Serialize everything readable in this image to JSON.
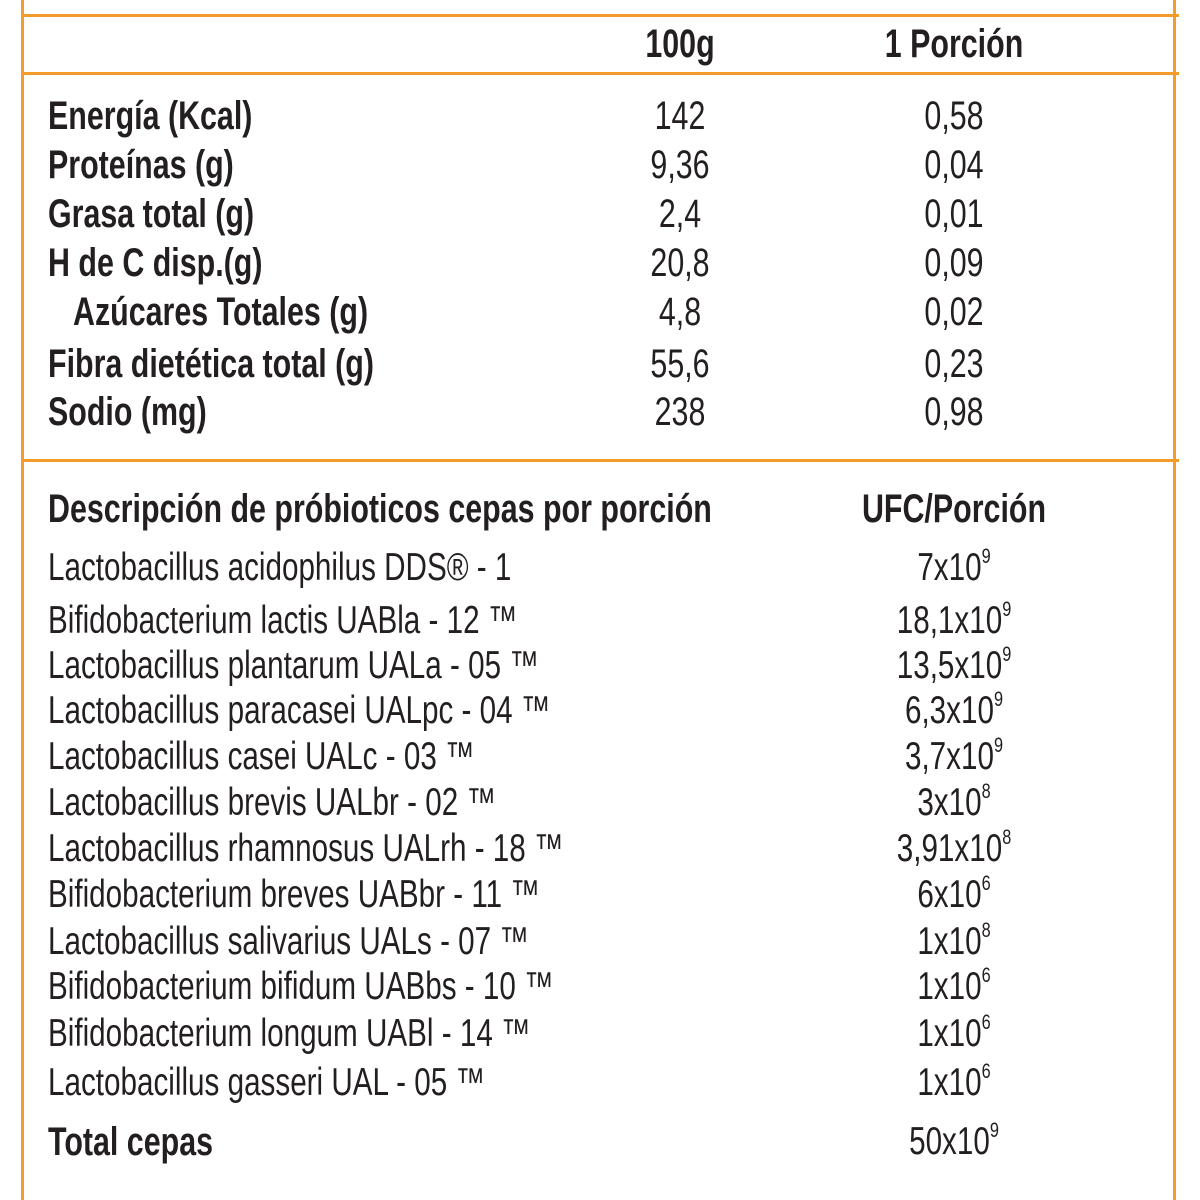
{
  "table": {
    "columns": {
      "per_100g": "100g",
      "per_portion": "1 Porción"
    },
    "rows": [
      {
        "label": "Energía (Kcal)",
        "per_100g": "142",
        "per_portion": "0,58",
        "indent": false
      },
      {
        "label": "Proteínas (g)",
        "per_100g": "9,36",
        "per_portion": "0,04",
        "indent": false
      },
      {
        "label": "Grasa total (g)",
        "per_100g": "2,4",
        "per_portion": "0,01",
        "indent": false
      },
      {
        "label": "H de C disp.(g)",
        "per_100g": "20,8",
        "per_portion": "0,09",
        "indent": false
      },
      {
        "label": "Azúcares Totales (g)",
        "per_100g": "4,8",
        "per_portion": "0,02",
        "indent": true
      },
      {
        "label": "Fibra dietética total (g)",
        "per_100g": "55,6",
        "per_portion": "0,23",
        "indent": false
      },
      {
        "label": "Sodio (mg)",
        "per_100g": "238",
        "per_portion": "0,98",
        "indent": false
      }
    ]
  },
  "probiotics": {
    "header_label": "Descripción de próbioticos cepas por porción",
    "header_ufc": "UFC/Porción",
    "strains": [
      {
        "name": "Lactobacillus acidophilus DDS® - 1",
        "mantissa": "7x10",
        "exp": "9"
      },
      {
        "name": "Bifidobacterium lactis UABla - 12 ™",
        "mantissa": "18,1x10",
        "exp": "9"
      },
      {
        "name": "Lactobacillus plantarum UALa - 05 ™",
        "mantissa": "13,5x10",
        "exp": "9"
      },
      {
        "name": "Lactobacillus paracasei UALpc - 04 ™",
        "mantissa": "6,3x10",
        "exp": "9"
      },
      {
        "name": "Lactobacillus casei UALc - 03 ™",
        "mantissa": "3,7x10",
        "exp": "9"
      },
      {
        "name": "Lactobacillus brevis UALbr - 02 ™",
        "mantissa": "3x10",
        "exp": "8"
      },
      {
        "name": "Lactobacillus rhamnosus UALrh - 18 ™",
        "mantissa": "3,91x10",
        "exp": "8"
      },
      {
        "name": "Bifidobacterium breves UABbr - 11 ™",
        "mantissa": "6x10",
        "exp": "6"
      },
      {
        "name": "Lactobacillus salivarius UALs - 07 ™",
        "mantissa": "1x10",
        "exp": "8"
      },
      {
        "name": "Bifidobacterium bifidum UABbs - 10 ™",
        "mantissa": "1x10",
        "exp": "6"
      },
      {
        "name": "Bifidobacterium longum UABl - 14 ™",
        "mantissa": "1x10",
        "exp": "6"
      },
      {
        "name": "Lactobacillus gasseri UAL - 05 ™",
        "mantissa": "1x10",
        "exp": "6"
      }
    ],
    "total": {
      "label": "Total cepas",
      "mantissa": "50x10",
      "exp": "9"
    }
  },
  "colors": {
    "border": "#f39c2c",
    "text": "#231f20"
  }
}
